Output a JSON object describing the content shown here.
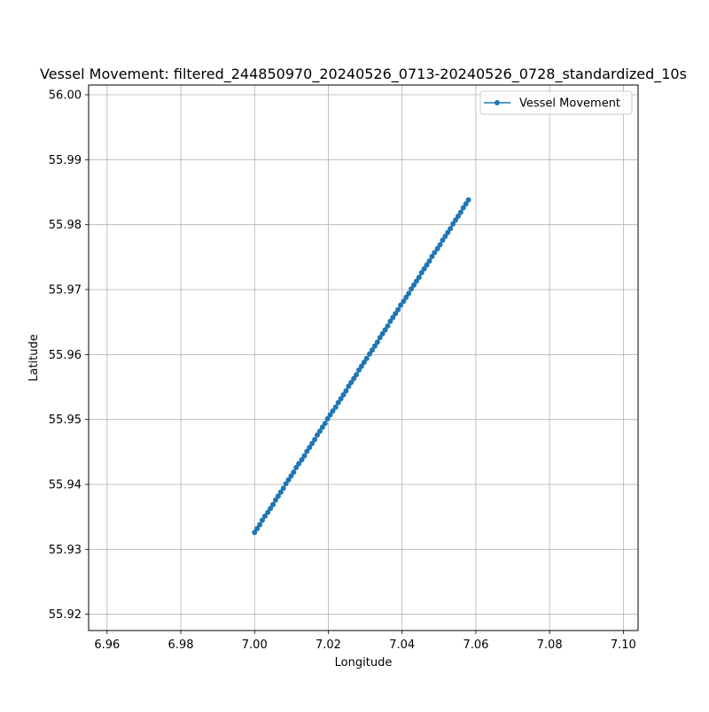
{
  "chart_data": {
    "type": "line",
    "title": "Vessel Movement: filtered_244850970_20240526_0713-20240526_0728_standardized_10s",
    "xlabel": "Longitude",
    "ylabel": "Latitude",
    "xlim": [
      6.955,
      7.104
    ],
    "ylim": [
      55.9175,
      56.0015
    ],
    "x_ticks": [
      6.96,
      6.98,
      7.0,
      7.02,
      7.04,
      7.06,
      7.08,
      7.1
    ],
    "x_tick_labels": [
      "6.96",
      "6.98",
      "7.00",
      "7.02",
      "7.04",
      "7.06",
      "7.08",
      "7.10"
    ],
    "y_ticks": [
      55.92,
      55.93,
      55.94,
      55.95,
      55.96,
      55.97,
      55.98,
      55.99,
      56.0
    ],
    "y_tick_labels": [
      "55.92",
      "55.93",
      "55.94",
      "55.95",
      "55.96",
      "55.97",
      "55.98",
      "55.99",
      "56.00"
    ],
    "grid": true,
    "legend_position": "top-right",
    "series": [
      {
        "name": "Vessel Movement",
        "color": "#1f77b4",
        "marker": "circle",
        "x": [
          7.0,
          7.0007,
          7.0014,
          7.0021,
          7.0028,
          7.0036,
          7.0043,
          7.005,
          7.0057,
          7.0064,
          7.0071,
          7.0078,
          7.0085,
          7.0092,
          7.0099,
          7.0106,
          7.0113,
          7.012,
          7.0128,
          7.0135,
          7.0142,
          7.0149,
          7.0156,
          7.0163,
          7.017,
          7.0177,
          7.0184,
          7.0191,
          7.0198,
          7.0205,
          7.0212,
          7.022,
          7.0227,
          7.0234,
          7.0241,
          7.0248,
          7.0255,
          7.0262,
          7.0269,
          7.0276,
          7.0283,
          7.029,
          7.0297,
          7.0304,
          7.0312,
          7.0319,
          7.0326,
          7.0333,
          7.034,
          7.0347,
          7.0354,
          7.0361,
          7.0368,
          7.0375,
          7.0382,
          7.0389,
          7.0396,
          7.0404,
          7.0411,
          7.0418,
          7.0425,
          7.0432,
          7.0439,
          7.0446,
          7.0453,
          7.046,
          7.0467,
          7.0474,
          7.0481,
          7.0488,
          7.0496,
          7.0503,
          7.051,
          7.0517,
          7.0524,
          7.0531,
          7.0538,
          7.0545,
          7.0552,
          7.0559,
          7.0566,
          7.0573,
          7.058
        ],
        "y": [
          55.9326,
          55.9332,
          55.9338,
          55.9345,
          55.9351,
          55.9357,
          55.9363,
          55.9369,
          55.9376,
          55.9382,
          55.9388,
          55.9394,
          55.9401,
          55.9407,
          55.9413,
          55.9419,
          55.9426,
          55.9432,
          55.9438,
          55.9444,
          55.9451,
          55.9457,
          55.9463,
          55.9469,
          55.9476,
          55.9482,
          55.9488,
          55.9494,
          55.9501,
          55.9507,
          55.9513,
          55.9519,
          55.9526,
          55.9532,
          55.9538,
          55.9544,
          55.9551,
          55.9557,
          55.9563,
          55.9569,
          55.9576,
          55.9582,
          55.9588,
          55.9594,
          55.9601,
          55.9607,
          55.9613,
          55.9619,
          55.9626,
          55.9632,
          55.9638,
          55.9644,
          55.9651,
          55.9657,
          55.9663,
          55.9669,
          55.9676,
          55.9682,
          55.9688,
          55.9694,
          55.9701,
          55.9707,
          55.9713,
          55.9719,
          55.9726,
          55.9732,
          55.9738,
          55.9744,
          55.9751,
          55.9757,
          55.9763,
          55.9769,
          55.9776,
          55.9782,
          55.9788,
          55.9794,
          55.9801,
          55.9807,
          55.9813,
          55.9819,
          55.9826,
          55.9832,
          55.9838
        ]
      }
    ]
  }
}
